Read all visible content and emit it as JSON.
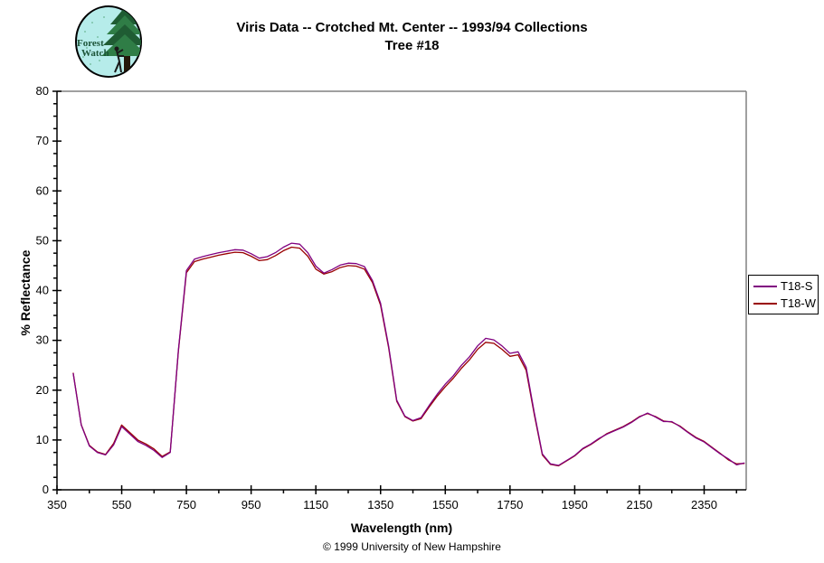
{
  "header": {
    "title_line1": "Viris Data -- Crotched Mt. Center -- 1993/94 Collections",
    "title_line2": "Tree #18",
    "logo": {
      "line1": "Forest",
      "line2": "Watch"
    }
  },
  "footer": {
    "copyright": "© 1999 University of New Hampshire"
  },
  "colors": {
    "series_s": "#800080",
    "series_w": "#990000",
    "frame_gray": "#808080",
    "axis_black": "#000000",
    "logo_bg": "#b6ecea",
    "logo_tree_dark": "#1f5c33",
    "logo_tree_mid": "#2f7d46",
    "logo_trunk": "#241609",
    "logo_text": "#1c5438"
  },
  "chart_data": {
    "type": "line",
    "title": "Viris Data -- Crotched Mt. Center -- 1993/94 Collections Tree #18",
    "xlabel": "Wavelength (nm)",
    "ylabel": "% Reflectance",
    "xlim": [
      350,
      2480
    ],
    "ylim": [
      0,
      80
    ],
    "grid": false,
    "legend_position": "right-outside",
    "x_major_ticks": [
      350,
      550,
      750,
      950,
      1150,
      1350,
      1550,
      1750,
      1950,
      2150,
      2350
    ],
    "x_minor_step": 100,
    "y_major_ticks": [
      0,
      10,
      20,
      30,
      40,
      50,
      60,
      70,
      80
    ],
    "y_minor_step": 2.5,
    "x": [
      400,
      425,
      450,
      475,
      500,
      525,
      550,
      575,
      600,
      625,
      650,
      675,
      700,
      725,
      750,
      775,
      800,
      825,
      850,
      875,
      900,
      925,
      950,
      975,
      1000,
      1025,
      1050,
      1075,
      1100,
      1125,
      1150,
      1175,
      1200,
      1225,
      1250,
      1275,
      1300,
      1325,
      1350,
      1375,
      1400,
      1425,
      1450,
      1475,
      1500,
      1525,
      1550,
      1575,
      1600,
      1625,
      1650,
      1675,
      1700,
      1725,
      1750,
      1775,
      1800,
      1825,
      1850,
      1875,
      1900,
      1925,
      1950,
      1975,
      2000,
      2025,
      2050,
      2075,
      2100,
      2125,
      2150,
      2175,
      2200,
      2225,
      2250,
      2275,
      2300,
      2325,
      2350,
      2375,
      2400,
      2425,
      2450,
      2475
    ],
    "series": [
      {
        "name": "T18-S",
        "color": "#800080",
        "values": [
          23.4,
          13.0,
          8.8,
          7.5,
          7.0,
          9.0,
          12.7,
          11.2,
          9.7,
          8.9,
          7.9,
          6.5,
          7.5,
          28.0,
          44.0,
          46.3,
          46.8,
          47.2,
          47.6,
          47.9,
          48.2,
          48.1,
          47.4,
          46.5,
          46.8,
          47.6,
          48.7,
          49.5,
          49.3,
          47.6,
          44.9,
          43.5,
          44.2,
          45.1,
          45.5,
          45.4,
          44.8,
          42.0,
          37.5,
          28.8,
          18.0,
          14.8,
          13.9,
          14.5,
          16.9,
          19.2,
          21.2,
          22.9,
          25.0,
          26.7,
          28.9,
          30.4,
          30.1,
          28.9,
          27.4,
          27.7,
          24.6,
          15.5,
          7.2,
          5.2,
          4.9,
          5.9,
          6.9,
          8.3,
          9.2,
          10.3,
          11.2,
          11.9,
          12.6,
          13.5,
          14.6,
          15.4,
          14.6,
          13.7,
          13.7,
          12.7,
          11.5,
          10.4,
          9.6,
          8.4,
          7.2,
          6.2,
          5.0,
          5.4
        ]
      },
      {
        "name": "T18-W",
        "color": "#990000",
        "values": [
          23.5,
          13.1,
          8.9,
          7.6,
          7.1,
          9.3,
          13.0,
          11.5,
          10.0,
          9.2,
          8.2,
          6.7,
          7.6,
          27.8,
          43.6,
          45.8,
          46.3,
          46.7,
          47.1,
          47.4,
          47.7,
          47.6,
          46.9,
          46.0,
          46.2,
          47.0,
          48.0,
          48.7,
          48.5,
          46.9,
          44.3,
          43.3,
          43.8,
          44.6,
          45.0,
          44.9,
          44.3,
          41.6,
          37.1,
          28.5,
          17.8,
          14.7,
          13.8,
          14.3,
          16.6,
          18.8,
          20.7,
          22.4,
          24.4,
          26.1,
          28.2,
          29.6,
          29.4,
          28.2,
          26.8,
          27.1,
          24.0,
          15.1,
          7.0,
          5.1,
          4.8,
          5.8,
          6.8,
          8.2,
          9.1,
          10.2,
          11.3,
          12.0,
          12.7,
          13.6,
          14.7,
          15.3,
          14.7,
          13.8,
          13.6,
          12.8,
          11.6,
          10.5,
          9.7,
          8.5,
          7.3,
          6.0,
          5.2,
          5.3
        ]
      }
    ]
  }
}
